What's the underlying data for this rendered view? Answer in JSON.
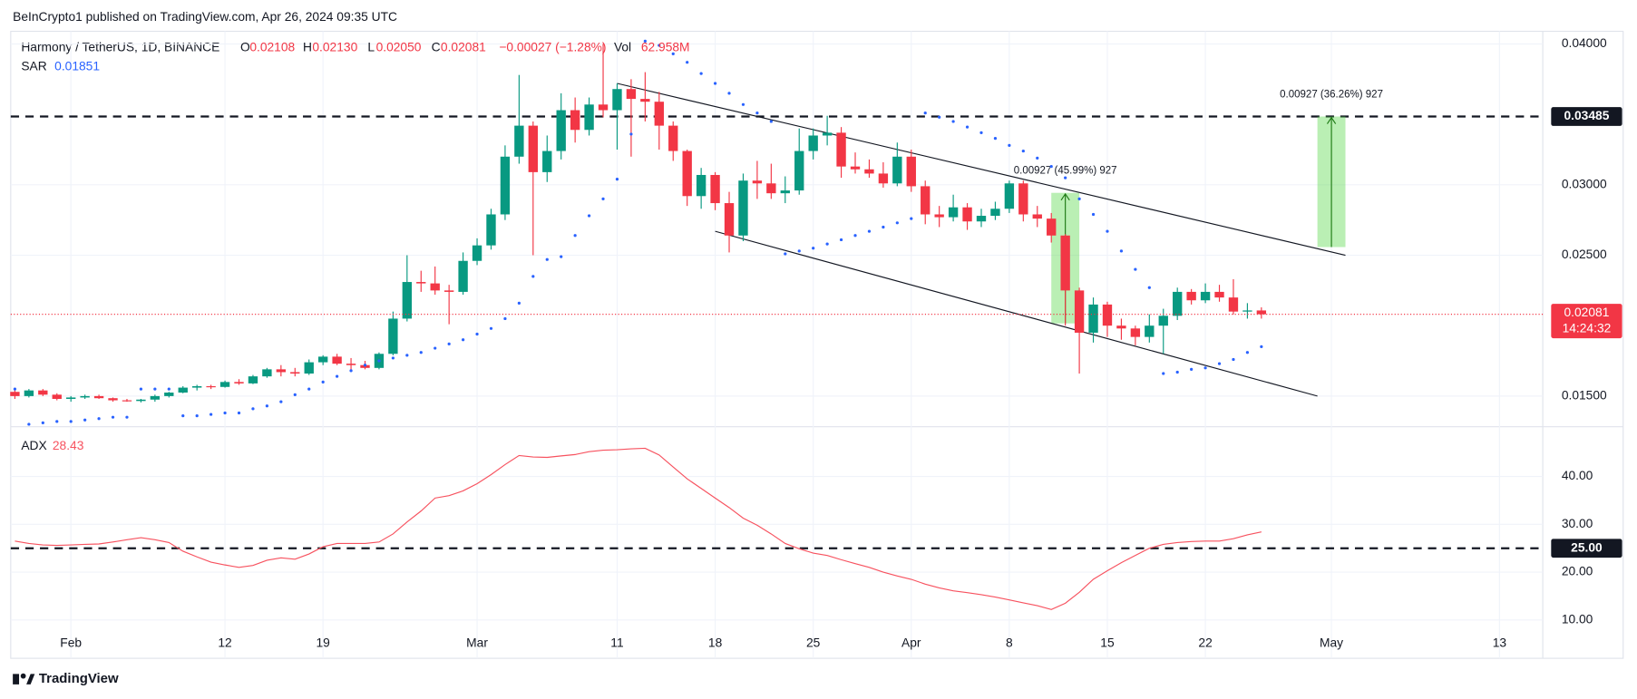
{
  "header": {
    "title": "BeInCrypto1 published on TradingView.com, Apr 26, 2024 09:35 UTC"
  },
  "footer": {
    "brand": "TradingView"
  },
  "chart_data": [
    {
      "type": "candlestick",
      "title": "Harmony / TetherUS, 1D, BINANCE",
      "legend": {
        "o": "O",
        "h": "H",
        "l": "L",
        "c": "C",
        "vol": "Vol"
      },
      "ohlc_labels": [
        "0.02108",
        "0.02130",
        "0.02050",
        "0.02081"
      ],
      "change": "−0.00027 (−1.28%)",
      "volume": "62.958M",
      "countdown": "14:24:32",
      "up_color": "#089981",
      "down_color": "#f23645",
      "categories": [
        null,
        null,
        null,
        null,
        "Feb",
        null,
        null,
        null,
        null,
        null,
        null,
        null,
        null,
        null,
        null,
        "12",
        null,
        null,
        null,
        null,
        null,
        null,
        "19",
        null,
        null,
        null,
        null,
        null,
        null,
        null,
        null,
        null,
        null,
        "Mar",
        null,
        null,
        null,
        null,
        null,
        null,
        null,
        null,
        null,
        "11",
        null,
        null,
        null,
        null,
        null,
        null,
        "18",
        null,
        null,
        null,
        null,
        null,
        null,
        "25",
        null,
        null,
        null,
        null,
        null,
        null,
        "Apr",
        null,
        null,
        null,
        null,
        null,
        null,
        "8",
        null,
        null,
        null,
        null,
        null,
        null,
        "15",
        null,
        null,
        null,
        null,
        null,
        null,
        "22",
        null,
        null,
        null,
        null,
        null,
        null,
        null,
        null,
        "May",
        null,
        null,
        null,
        null,
        null,
        null,
        null,
        null,
        null,
        null,
        null,
        "13"
      ],
      "open": [
        0.0153,
        0.015,
        0.0154,
        0.0151,
        0.0148,
        0.0149,
        0.015,
        0.01485,
        0.0147,
        0.01465,
        0.01475,
        0.015,
        0.01525,
        0.0156,
        0.0157,
        0.01565,
        0.016,
        0.0159,
        0.0164,
        0.0169,
        0.0167,
        0.0166,
        0.0174,
        0.0178,
        0.0173,
        0.0172,
        0.017,
        0.018,
        0.0205,
        0.0231,
        0.023,
        0.0225,
        0.0224,
        0.0246,
        0.0257,
        0.0279,
        0.032,
        0.0342,
        0.0309,
        0.0324,
        0.0353,
        0.0339,
        0.0357,
        0.0353,
        0.0368,
        0.0361,
        0.0359,
        0.0342,
        0.0324,
        0.0292,
        0.0307,
        0.0287,
        0.0264,
        0.0303,
        0.0301,
        0.0294,
        0.0296,
        0.0324,
        0.0335,
        0.0337,
        0.0313,
        0.0311,
        0.0308,
        0.0301,
        0.032,
        0.0299,
        0.0279,
        0.0277,
        0.0284,
        0.0274,
        0.0278,
        0.0283,
        0.0301,
        0.0279,
        0.0276,
        0.0264,
        0.0225,
        0.0195,
        0.0215,
        0.02,
        0.0198,
        0.0192,
        0.02,
        0.0207,
        0.0224,
        0.0218,
        0.0224,
        0.022,
        0.021,
        0.02108,
        null,
        null,
        null,
        null,
        null,
        null,
        null,
        null,
        null,
        null,
        null,
        null,
        null,
        null,
        null,
        null,
        null
      ],
      "high": [
        0.0156,
        0.0155,
        0.0155,
        0.0152,
        0.015,
        0.0151,
        0.0151,
        0.0149,
        0.0148,
        0.0148,
        0.0151,
        0.0153,
        0.0157,
        0.0158,
        0.0158,
        0.0161,
        0.0162,
        0.0165,
        0.017,
        0.0172,
        0.017,
        0.0176,
        0.0179,
        0.018,
        0.0177,
        0.0175,
        0.0181,
        0.021,
        0.025,
        0.0239,
        0.0242,
        0.0229,
        0.0252,
        0.0262,
        0.0283,
        0.0328,
        0.0378,
        0.0345,
        0.0335,
        0.0365,
        0.0362,
        0.0362,
        0.04,
        0.0372,
        0.0375,
        0.038,
        0.0366,
        0.0345,
        0.0325,
        0.0312,
        0.0309,
        0.0295,
        0.0308,
        0.0317,
        0.0315,
        0.0306,
        0.034,
        0.034,
        0.0349,
        0.0341,
        0.0323,
        0.0318,
        0.0316,
        0.033,
        0.0325,
        0.0303,
        0.0285,
        0.0293,
        0.0287,
        0.0283,
        0.0288,
        0.0303,
        0.0303,
        0.0285,
        0.028,
        0.0265,
        0.0227,
        0.022,
        0.0217,
        0.0205,
        0.02,
        0.0208,
        0.0212,
        0.0227,
        0.0226,
        0.023,
        0.0229,
        0.0233,
        0.0216,
        0.0213,
        null,
        null,
        null,
        null,
        null,
        null,
        null,
        null,
        null,
        null,
        null,
        null,
        null,
        null,
        null,
        null,
        null
      ],
      "low": [
        0.0148,
        0.0149,
        0.015,
        0.0147,
        0.0146,
        0.0148,
        0.0148,
        0.0146,
        0.0146,
        0.01455,
        0.0146,
        0.0149,
        0.0152,
        0.0154,
        0.0155,
        0.0156,
        0.0158,
        0.01585,
        0.0163,
        0.0164,
        0.0164,
        0.0165,
        0.0172,
        0.0172,
        0.0168,
        0.0169,
        0.0169,
        0.0179,
        0.0203,
        0.0224,
        0.0222,
        0.0201,
        0.0222,
        0.0243,
        0.0254,
        0.0275,
        0.0315,
        0.025,
        0.0302,
        0.0318,
        0.033,
        0.0335,
        0.0348,
        0.0325,
        0.032,
        0.0345,
        0.0325,
        0.0317,
        0.0285,
        0.0283,
        0.0282,
        0.0252,
        0.026,
        0.029,
        0.029,
        0.0287,
        0.0293,
        0.0318,
        0.0328,
        0.0305,
        0.0308,
        0.0305,
        0.0298,
        0.0299,
        0.0295,
        0.0272,
        0.027,
        0.0274,
        0.0268,
        0.027,
        0.0275,
        0.028,
        0.0274,
        0.027,
        0.0259,
        0.02,
        0.0166,
        0.0188,
        0.0192,
        0.019,
        0.0186,
        0.0188,
        0.018,
        0.0204,
        0.0215,
        0.0216,
        0.0217,
        0.0208,
        0.0205,
        0.0205,
        null,
        null,
        null,
        null,
        null,
        null,
        null,
        null,
        null,
        null,
        null,
        null,
        null,
        null,
        null,
        null,
        null
      ],
      "close": [
        0.015,
        0.0154,
        0.0151,
        0.0148,
        0.0149,
        0.015,
        0.01485,
        0.0147,
        0.01465,
        0.01475,
        0.015,
        0.01525,
        0.0156,
        0.0157,
        0.01565,
        0.016,
        0.0159,
        0.0164,
        0.0169,
        0.0167,
        0.0166,
        0.0174,
        0.0178,
        0.0173,
        0.0172,
        0.017,
        0.018,
        0.0205,
        0.0231,
        0.023,
        0.0225,
        0.0224,
        0.0246,
        0.0257,
        0.0279,
        0.032,
        0.0342,
        0.0309,
        0.0324,
        0.0353,
        0.0339,
        0.0357,
        0.0353,
        0.0368,
        0.0361,
        0.0359,
        0.0342,
        0.0324,
        0.0292,
        0.0307,
        0.0287,
        0.0264,
        0.0303,
        0.0301,
        0.0294,
        0.0296,
        0.0324,
        0.0335,
        0.0337,
        0.0313,
        0.0311,
        0.0308,
        0.0301,
        0.032,
        0.0299,
        0.0279,
        0.0277,
        0.0284,
        0.0274,
        0.0278,
        0.0283,
        0.0301,
        0.0279,
        0.0276,
        0.0264,
        0.0225,
        0.0195,
        0.0215,
        0.02,
        0.0198,
        0.0192,
        0.02,
        0.0207,
        0.0224,
        0.0218,
        0.0224,
        0.022,
        0.021,
        0.02108,
        0.02081,
        null,
        null,
        null,
        null,
        null,
        null,
        null,
        null,
        null,
        null,
        null,
        null,
        null,
        null,
        null,
        null,
        null
      ],
      "series": [
        {
          "name": "SAR",
          "color": "#2962ff",
          "values": [
            0.0155,
            0.013,
            0.0131,
            0.0132,
            0.0132,
            0.0133,
            0.0134,
            0.0135,
            0.0135,
            0.0155,
            0.0155,
            0.0155,
            0.0136,
            0.0136,
            0.0137,
            0.0138,
            0.0138,
            0.0141,
            0.0143,
            0.0146,
            0.0151,
            0.0155,
            0.016,
            0.0164,
            0.0168,
            0.0172,
            0.0175,
            0.0177,
            0.0179,
            0.0181,
            0.0184,
            0.0187,
            0.019,
            0.0194,
            0.0198,
            0.0205,
            0.0216,
            0.0235,
            0.0247,
            0.0249,
            0.0264,
            0.0278,
            0.029,
            0.0304,
            0.0336,
            0.0402,
            0.0399,
            0.0393,
            0.0387,
            0.0379,
            0.0372,
            0.0365,
            0.0357,
            0.0351,
            0.0345,
            0.0251,
            0.0253,
            0.0255,
            0.0258,
            0.0261,
            0.0264,
            0.0267,
            0.027,
            0.0273,
            0.0276,
            0.0351,
            0.0348,
            0.0345,
            0.0341,
            0.0337,
            0.0333,
            0.0328,
            0.0324,
            0.0319,
            0.0313,
            0.0305,
            0.029,
            0.0279,
            0.0267,
            0.0253,
            0.024,
            0.0227,
            0.0166,
            0.0167,
            0.0169,
            0.017,
            0.0173,
            0.0176,
            0.0181,
            0.01851,
            null,
            null,
            null,
            null,
            null,
            null,
            null,
            null,
            null,
            null,
            null,
            null,
            null,
            null,
            null,
            null,
            null
          ]
        }
      ],
      "ylim": [
        0.0129,
        0.0409
      ],
      "yticks": [
        {
          "value": 0.015,
          "label": "0.01500"
        },
        {
          "value": 0.025,
          "label": "0.02500"
        },
        {
          "value": 0.03,
          "label": "0.03000"
        },
        {
          "value": 0.04,
          "label": "0.04000"
        }
      ],
      "levels": [
        {
          "value": 0.03485,
          "label": "0.03485"
        }
      ],
      "trendlines": [
        {
          "x": [
            43,
            95
          ],
          "y": [
            0.0372,
            0.025
          ]
        },
        {
          "x": [
            50,
            93
          ],
          "y": [
            0.0267,
            0.015
          ]
        }
      ],
      "measures": [
        {
          "x": [
            93,
            95
          ],
          "y": [
            0.02558,
            0.03485
          ],
          "label": "0.00927 (36.26%) 927"
        },
        {
          "x": [
            74,
            76
          ],
          "y": [
            0.02016,
            0.02943
          ],
          "label": "0.00927 (45.99%) 927"
        }
      ]
    },
    {
      "type": "line",
      "series": [
        {
          "name": "ADX",
          "color": "#f7525f",
          "values": [
            26.5,
            26.0,
            25.7,
            25.6,
            25.7,
            25.8,
            25.9,
            26.3,
            26.8,
            27.2,
            26.8,
            26.2,
            24.4,
            23.2,
            22.1,
            21.5,
            21.0,
            21.4,
            22.5,
            23.0,
            22.7,
            23.8,
            25.3,
            26.0,
            26.0,
            26.0,
            26.3,
            28.0,
            30.5,
            32.8,
            35.5,
            36.0,
            37.0,
            38.5,
            40.4,
            42.5,
            44.4,
            44.1,
            44.0,
            44.3,
            44.6,
            45.2,
            45.5,
            45.6,
            45.8,
            45.9,
            44.5,
            42.0,
            39.5,
            37.5,
            35.5,
            33.5,
            31.3,
            29.8,
            28.0,
            26.0,
            24.9,
            24.0,
            23.5,
            22.6,
            21.8,
            21.0,
            20.0,
            19.2,
            18.5,
            17.5,
            16.7,
            16.1,
            15.7,
            15.3,
            14.8,
            14.2,
            13.6,
            13.0,
            12.2,
            13.5,
            15.8,
            18.5,
            20.3,
            22.0,
            23.5,
            25.0,
            25.8,
            26.2,
            26.4,
            26.5,
            26.5,
            27.0,
            27.8,
            28.43,
            null,
            null,
            null,
            null,
            null,
            null,
            null,
            null,
            null,
            null,
            null,
            null,
            null,
            null,
            null,
            null,
            null
          ]
        }
      ],
      "ylim": [
        2.2,
        50.2
      ],
      "yticks": [
        {
          "value": 10,
          "label": "10.00"
        },
        {
          "value": 20,
          "label": "20.00"
        },
        {
          "value": 30,
          "label": "30.00"
        },
        {
          "value": 40,
          "label": "40.00"
        }
      ],
      "levels": [
        {
          "value": 25,
          "label": "25.00"
        }
      ]
    }
  ]
}
